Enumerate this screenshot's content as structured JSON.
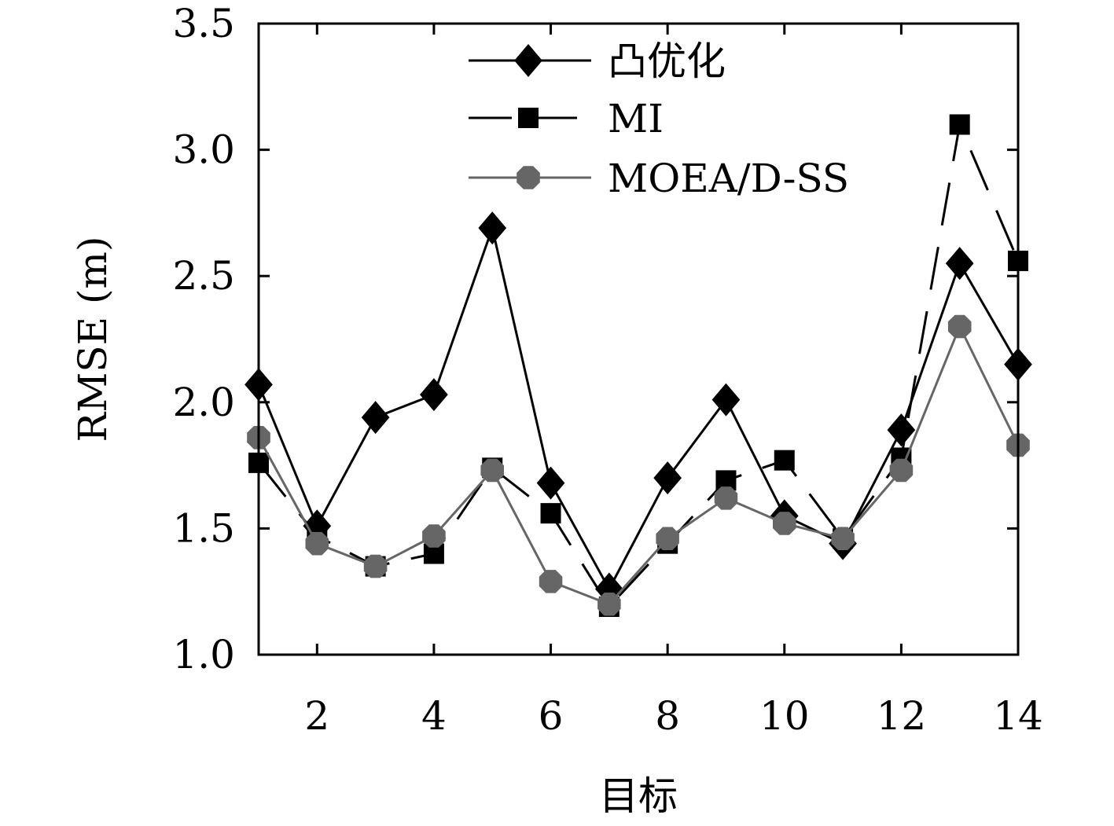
{
  "chart_data": {
    "type": "line",
    "title": "",
    "xlabel": "目标",
    "ylabel": "RMSE (m)",
    "xlim": [
      1,
      14
    ],
    "ylim": [
      1.0,
      3.5
    ],
    "xticks": [
      2,
      4,
      6,
      8,
      10,
      12,
      14
    ],
    "xtick_labels": [
      "2",
      "4",
      "6",
      "8",
      "10",
      "12",
      "14"
    ],
    "yticks": [
      1.0,
      1.5,
      2.0,
      2.5,
      3.0,
      3.5
    ],
    "ytick_labels": [
      "1.0",
      "1.5",
      "2.0",
      "2.5",
      "3.0",
      "3.5"
    ],
    "grid": false,
    "legend_position": "top-center",
    "x": [
      1,
      2,
      3,
      4,
      5,
      6,
      7,
      8,
      9,
      10,
      11,
      12,
      13,
      14
    ],
    "series": [
      {
        "name": "凸优化",
        "marker": "diamond",
        "line_style": "solid",
        "color": "#000000",
        "values": [
          2.07,
          1.51,
          1.94,
          2.03,
          2.69,
          1.68,
          1.26,
          1.7,
          2.01,
          1.55,
          1.44,
          1.89,
          2.55,
          2.15
        ]
      },
      {
        "name": "MI",
        "marker": "square",
        "line_style": "dashed",
        "color": "#000000",
        "values": [
          1.76,
          1.47,
          1.35,
          1.4,
          1.74,
          1.56,
          1.19,
          1.44,
          1.69,
          1.77,
          1.46,
          1.78,
          3.1,
          2.56
        ]
      },
      {
        "name": "MOEA/D-SS",
        "marker": "circle",
        "line_style": "solid",
        "color": "#666666",
        "values": [
          1.86,
          1.44,
          1.35,
          1.47,
          1.73,
          1.29,
          1.2,
          1.46,
          1.62,
          1.52,
          1.46,
          1.73,
          2.3,
          1.83
        ]
      }
    ]
  }
}
